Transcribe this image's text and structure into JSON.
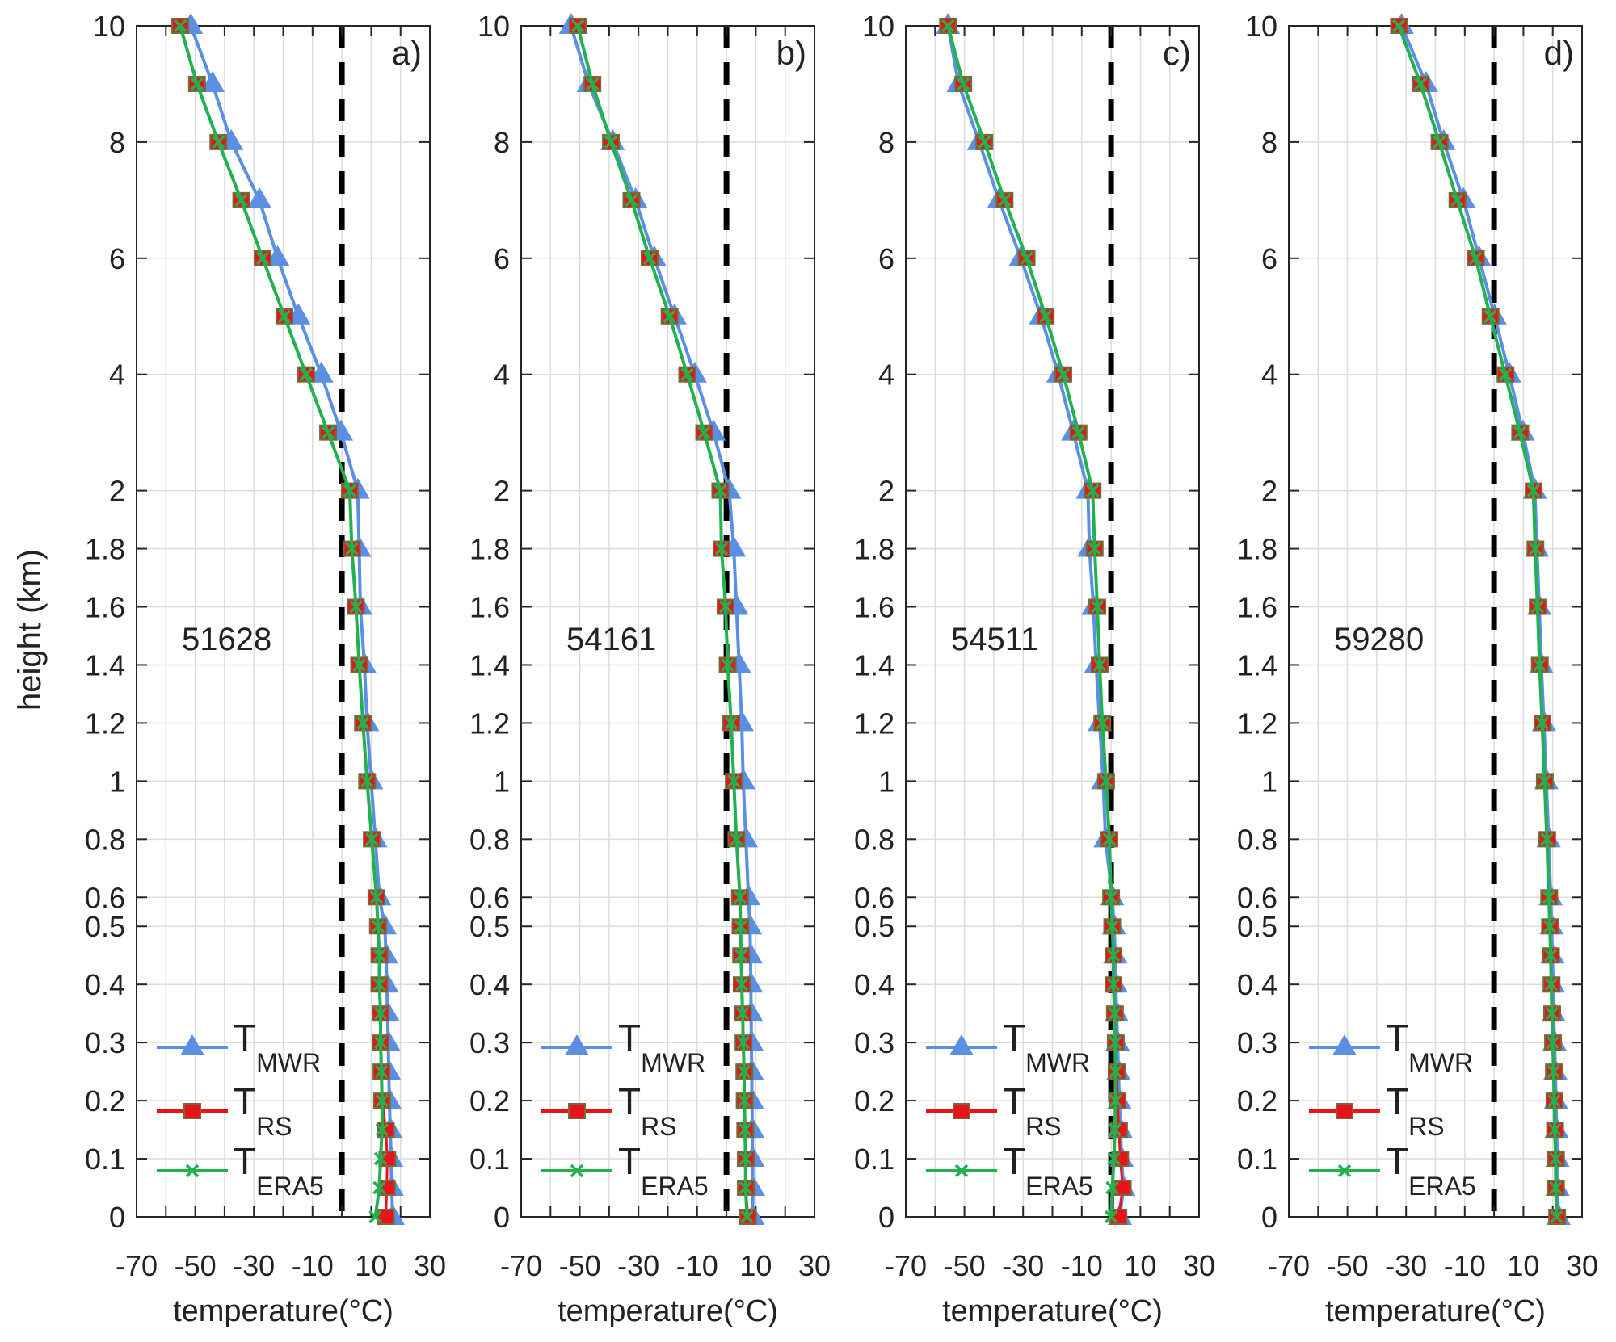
{
  "chart_data": {
    "type": "line",
    "ylabel": "height (km)",
    "xlabel": "temperature(°C)",
    "xlim": [
      -70,
      30
    ],
    "xticks": [
      -70,
      -50,
      -30,
      -10,
      10,
      30
    ],
    "xgrid_step": 10,
    "ylim": [
      0,
      10
    ],
    "y_axis_note": "piecewise scale: 0-0.5 step 0.1, 0.6-2 step 0.2, 2-10 step 1",
    "yticks": [
      0,
      0.1,
      0.2,
      0.3,
      0.4,
      0.5,
      0.6,
      0.8,
      1,
      1.2,
      1.4,
      1.6,
      1.8,
      2,
      4,
      6,
      8,
      10
    ],
    "ytick_labels": [
      "0",
      "0.1",
      "0.2",
      "0.3",
      "0.4",
      "0.5",
      "0.6",
      "0.8",
      "1",
      "1.2",
      "1.4",
      "1.6",
      "1.8",
      "2",
      "4",
      "6",
      "8",
      "10"
    ],
    "xtick_labels": [
      "-70",
      "-50",
      "-30",
      "-10",
      "10",
      "30"
    ],
    "reference_line_x": 0,
    "grid": true,
    "legend": {
      "placement": "bottom-left",
      "entries": [
        {
          "main": "T",
          "sub": "MWR",
          "key": "mwr"
        },
        {
          "main": "T",
          "sub": "RS",
          "key": "rs"
        },
        {
          "main": "T",
          "sub": "ERA5",
          "key": "era5"
        }
      ]
    },
    "colors": {
      "mwr": "#5b8fe3",
      "rs": "#e8141a",
      "era5": "#21b14f",
      "grid": "#dcdcdc",
      "axis": "#262626"
    },
    "heights": [
      0,
      0.05,
      0.1,
      0.15,
      0.2,
      0.25,
      0.3,
      0.35,
      0.4,
      0.45,
      0.5,
      0.6,
      0.8,
      1,
      1.2,
      1.4,
      1.6,
      1.8,
      2,
      3,
      4,
      5,
      6,
      7,
      8,
      9,
      10
    ],
    "panels": [
      {
        "letter": "a)",
        "station": "51628",
        "rs": [
          15.0,
          15.3,
          15.5,
          15.0,
          13.7,
          13.5,
          13.2,
          13.2,
          12.8,
          12.8,
          12.3,
          11.8,
          10.2,
          8.6,
          7.2,
          5.9,
          4.8,
          3.4,
          2.7,
          -4.7,
          -12.2,
          -19.6,
          -27.0,
          -34.3,
          -42.1,
          -49.4,
          -55.1
        ],
        "era5": [
          11.4,
          12.8,
          13.2,
          13.7,
          13.7,
          13.5,
          13.2,
          13.2,
          12.8,
          12.8,
          12.3,
          11.8,
          10.2,
          8.6,
          7.2,
          5.9,
          4.8,
          3.4,
          2.7,
          -4.7,
          -12.2,
          -19.6,
          -27.0,
          -34.3,
          -42.1,
          -49.4,
          -55.1
        ],
        "mwr": [
          17.3,
          17.0,
          16.8,
          16.5,
          16.2,
          16.0,
          15.8,
          15.6,
          15.3,
          15.1,
          14.6,
          12.8,
          11.4,
          10.0,
          8.6,
          7.7,
          6.3,
          5.9,
          5.4,
          -0.3,
          -7.0,
          -14.8,
          -21.9,
          -28.1,
          -37.7,
          -44.1,
          -51.5
        ]
      },
      {
        "letter": "b)",
        "station": "54161",
        "rs": [
          7.3,
          6.6,
          6.6,
          6.4,
          6.2,
          6.1,
          5.8,
          5.6,
          5.2,
          5.0,
          4.8,
          4.6,
          3.4,
          2.5,
          1.6,
          0.4,
          -0.3,
          -1.7,
          -2.1,
          -7.6,
          -13.4,
          -19.4,
          -26.2,
          -32.4,
          -39.4,
          -45.7,
          -50.7
        ],
        "era5": [
          7.0,
          6.5,
          6.5,
          6.3,
          6.1,
          6.0,
          5.7,
          5.5,
          5.2,
          5.0,
          4.8,
          4.6,
          3.4,
          2.5,
          1.6,
          0.4,
          -0.3,
          -1.7,
          -2.1,
          -7.6,
          -13.4,
          -19.4,
          -26.2,
          -32.4,
          -39.4,
          -45.7,
          -50.7
        ],
        "mwr": [
          8.9,
          9.0,
          8.9,
          8.8,
          8.7,
          8.6,
          8.5,
          8.4,
          8.3,
          8.2,
          8.0,
          7.5,
          6.6,
          5.7,
          5.2,
          4.3,
          3.4,
          2.5,
          0.9,
          -4.4,
          -10.8,
          -17.7,
          -24.6,
          -31.0,
          -38.8,
          -47.0,
          -53.0
        ]
      },
      {
        "letter": "c)",
        "station": "54511",
        "rs": [
          2.5,
          4.0,
          3.1,
          2.7,
          2.2,
          1.9,
          1.6,
          1.3,
          0.8,
          0.8,
          0.4,
          0.0,
          -0.6,
          -1.7,
          -3.0,
          -3.9,
          -4.7,
          -5.6,
          -6.3,
          -11.1,
          -16.3,
          -22.3,
          -28.8,
          -36.3,
          -43.2,
          -50.4,
          -55.6
        ],
        "era5": [
          0.0,
          0.4,
          1.0,
          1.3,
          1.5,
          1.5,
          1.4,
          1.2,
          0.8,
          0.8,
          0.4,
          0.0,
          -0.6,
          -1.7,
          -3.0,
          -3.9,
          -4.7,
          -5.6,
          -6.3,
          -11.1,
          -16.3,
          -22.3,
          -28.8,
          -36.3,
          -43.2,
          -50.4,
          -55.6
        ],
        "mwr": [
          3.0,
          4.2,
          3.6,
          3.2,
          2.8,
          2.5,
          2.2,
          1.9,
          1.6,
          1.4,
          1.0,
          0.4,
          -1.9,
          -2.7,
          -3.9,
          -5.1,
          -6.0,
          -7.4,
          -7.9,
          -12.9,
          -18.0,
          -23.9,
          -30.8,
          -38.2,
          -45.0,
          -52.0,
          -55.6
        ]
      },
      {
        "letter": "d)",
        "station": "59280",
        "rs": [
          21.5,
          21.1,
          21.1,
          20.8,
          20.6,
          20.4,
          20.1,
          19.8,
          19.6,
          19.4,
          19.1,
          18.8,
          18.1,
          17.3,
          16.5,
          15.6,
          14.9,
          14.1,
          13.5,
          8.9,
          3.9,
          -1.2,
          -6.2,
          -12.5,
          -18.6,
          -25.0,
          -32.4
        ],
        "era5": [
          21.3,
          21.0,
          21.0,
          20.7,
          20.5,
          20.3,
          20.0,
          19.7,
          19.5,
          19.3,
          19.0,
          18.7,
          18.0,
          17.2,
          16.4,
          15.5,
          14.8,
          14.0,
          13.4,
          8.8,
          3.8,
          -1.3,
          -6.3,
          -12.6,
          -18.7,
          -25.1,
          -32.5
        ],
        "mwr": [
          22.0,
          21.6,
          21.6,
          21.3,
          21.1,
          20.9,
          20.6,
          20.3,
          20.1,
          19.9,
          19.6,
          19.3,
          18.6,
          17.8,
          17.0,
          16.1,
          15.4,
          14.6,
          13.9,
          9.8,
          5.2,
          0.2,
          -5.1,
          -10.4,
          -17.2,
          -23.2,
          -31.5
        ]
      }
    ]
  }
}
